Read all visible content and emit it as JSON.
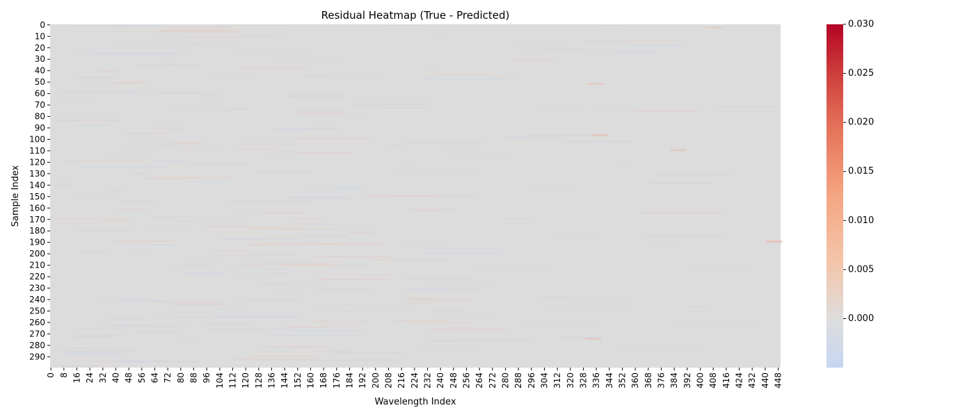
{
  "chart_data": {
    "type": "heatmap",
    "title": "Residual Heatmap (True - Predicted)",
    "xlabel": "Wavelength Index",
    "ylabel": "Sample Index",
    "n_rows": 300,
    "n_cols": 450,
    "x_ticks": [
      0,
      8,
      16,
      24,
      32,
      40,
      48,
      56,
      64,
      72,
      80,
      88,
      96,
      104,
      112,
      120,
      128,
      136,
      144,
      152,
      160,
      168,
      176,
      184,
      192,
      200,
      208,
      216,
      224,
      232,
      240,
      248,
      256,
      264,
      272,
      280,
      288,
      296,
      304,
      312,
      320,
      328,
      336,
      344,
      352,
      360,
      368,
      376,
      384,
      392,
      400,
      408,
      416,
      424,
      432,
      440,
      448
    ],
    "y_ticks": [
      0,
      10,
      20,
      30,
      40,
      50,
      60,
      70,
      80,
      90,
      100,
      110,
      120,
      130,
      140,
      150,
      160,
      170,
      180,
      190,
      200,
      210,
      220,
      230,
      240,
      250,
      260,
      270,
      280,
      290
    ],
    "colormap": "coolwarm",
    "colorbar": {
      "vmin": -0.005,
      "vmax": 0.03,
      "ticks": [
        "0.000",
        "0.005",
        "0.010",
        "0.015",
        "0.020",
        "0.025",
        "0.030"
      ],
      "tick_values": [
        0,
        0.005,
        0.01,
        0.015,
        0.02,
        0.025,
        0.03
      ]
    },
    "typical_value_range": [
      -0.002,
      0.004
    ],
    "notable_cells": [
      {
        "row": 2,
        "col": 408,
        "value": 0.003
      },
      {
        "row": 51,
        "col": 335,
        "value": 0.004
      },
      {
        "row": 96,
        "col": 338,
        "value": 0.005
      },
      {
        "row": 109,
        "col": 386,
        "value": 0.004
      },
      {
        "row": 189,
        "col": 445,
        "value": 0.006
      },
      {
        "row": 274,
        "col": 334,
        "value": 0.004
      }
    ],
    "grid": false
  }
}
